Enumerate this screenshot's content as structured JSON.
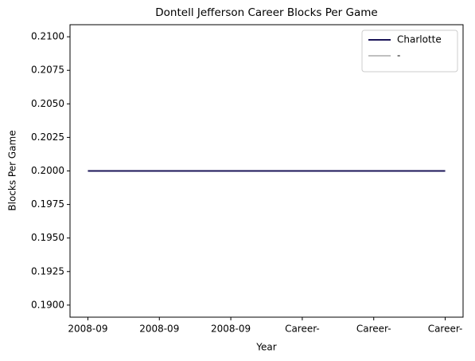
{
  "chart_data": {
    "type": "line",
    "title": "Dontell Jefferson Career Blocks Per Game",
    "xlabel": "Year",
    "ylabel": "Blocks Per Game",
    "categories": [
      "2008-09",
      "2008-09",
      "2008-09",
      "Career-",
      "Career-",
      "Career-"
    ],
    "series": [
      {
        "name": "Charlotte",
        "color": "#1b1558",
        "values": [
          0.2,
          0.2,
          0.2,
          0.2,
          0.2,
          0.2
        ]
      },
      {
        "name": "-",
        "color": "#c0c0c0",
        "values": [
          0.2,
          0.2,
          0.2,
          0.2,
          0.2,
          0.2
        ]
      }
    ],
    "ylim": [
      0.1891,
      0.2109
    ],
    "yticks": [
      {
        "value": 0.19,
        "label": "0.1900"
      },
      {
        "value": 0.1925,
        "label": "0.1925"
      },
      {
        "value": 0.195,
        "label": "0.1950"
      },
      {
        "value": 0.1975,
        "label": "0.1975"
      },
      {
        "value": 0.2,
        "label": "0.2000"
      },
      {
        "value": 0.2025,
        "label": "0.2025"
      },
      {
        "value": 0.205,
        "label": "0.2050"
      },
      {
        "value": 0.2075,
        "label": "0.2075"
      },
      {
        "value": 0.21,
        "label": "0.2100"
      }
    ],
    "legend": "upper right",
    "grid": false
  }
}
